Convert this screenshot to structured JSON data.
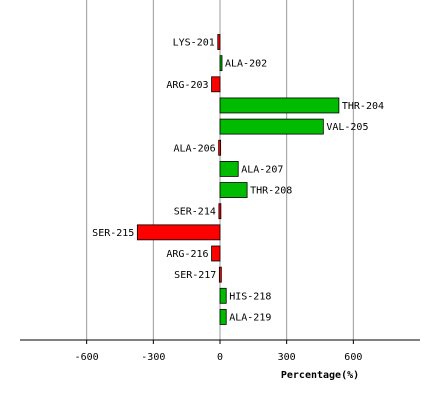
{
  "chart_data": {
    "type": "bar",
    "orientation": "horizontal",
    "categories": [
      "LYS-201",
      "ALA-202",
      "ARG-203",
      "THR-204",
      "VAL-205",
      "ALA-206",
      "ALA-207",
      "THR-208",
      "SER-214",
      "SER-215",
      "ARG-216",
      "SER-217",
      "HIS-218",
      "ALA-219"
    ],
    "values": [
      -10,
      8,
      -38,
      535,
      465,
      -6,
      82,
      122,
      -5,
      -372,
      -38,
      -3,
      28,
      28
    ],
    "xlabel": "Percentage(%)",
    "xlim": [
      -900,
      900
    ],
    "xticks": [
      -600,
      -300,
      0,
      300,
      600
    ],
    "xtick_labels": [
      "-600",
      "-300",
      "0",
      "300",
      "600"
    ],
    "grid": "vertical",
    "positive_color": "#00bb00",
    "negative_color": "#ff0000",
    "edge_color": "#000000",
    "grid_color": "#999999"
  }
}
